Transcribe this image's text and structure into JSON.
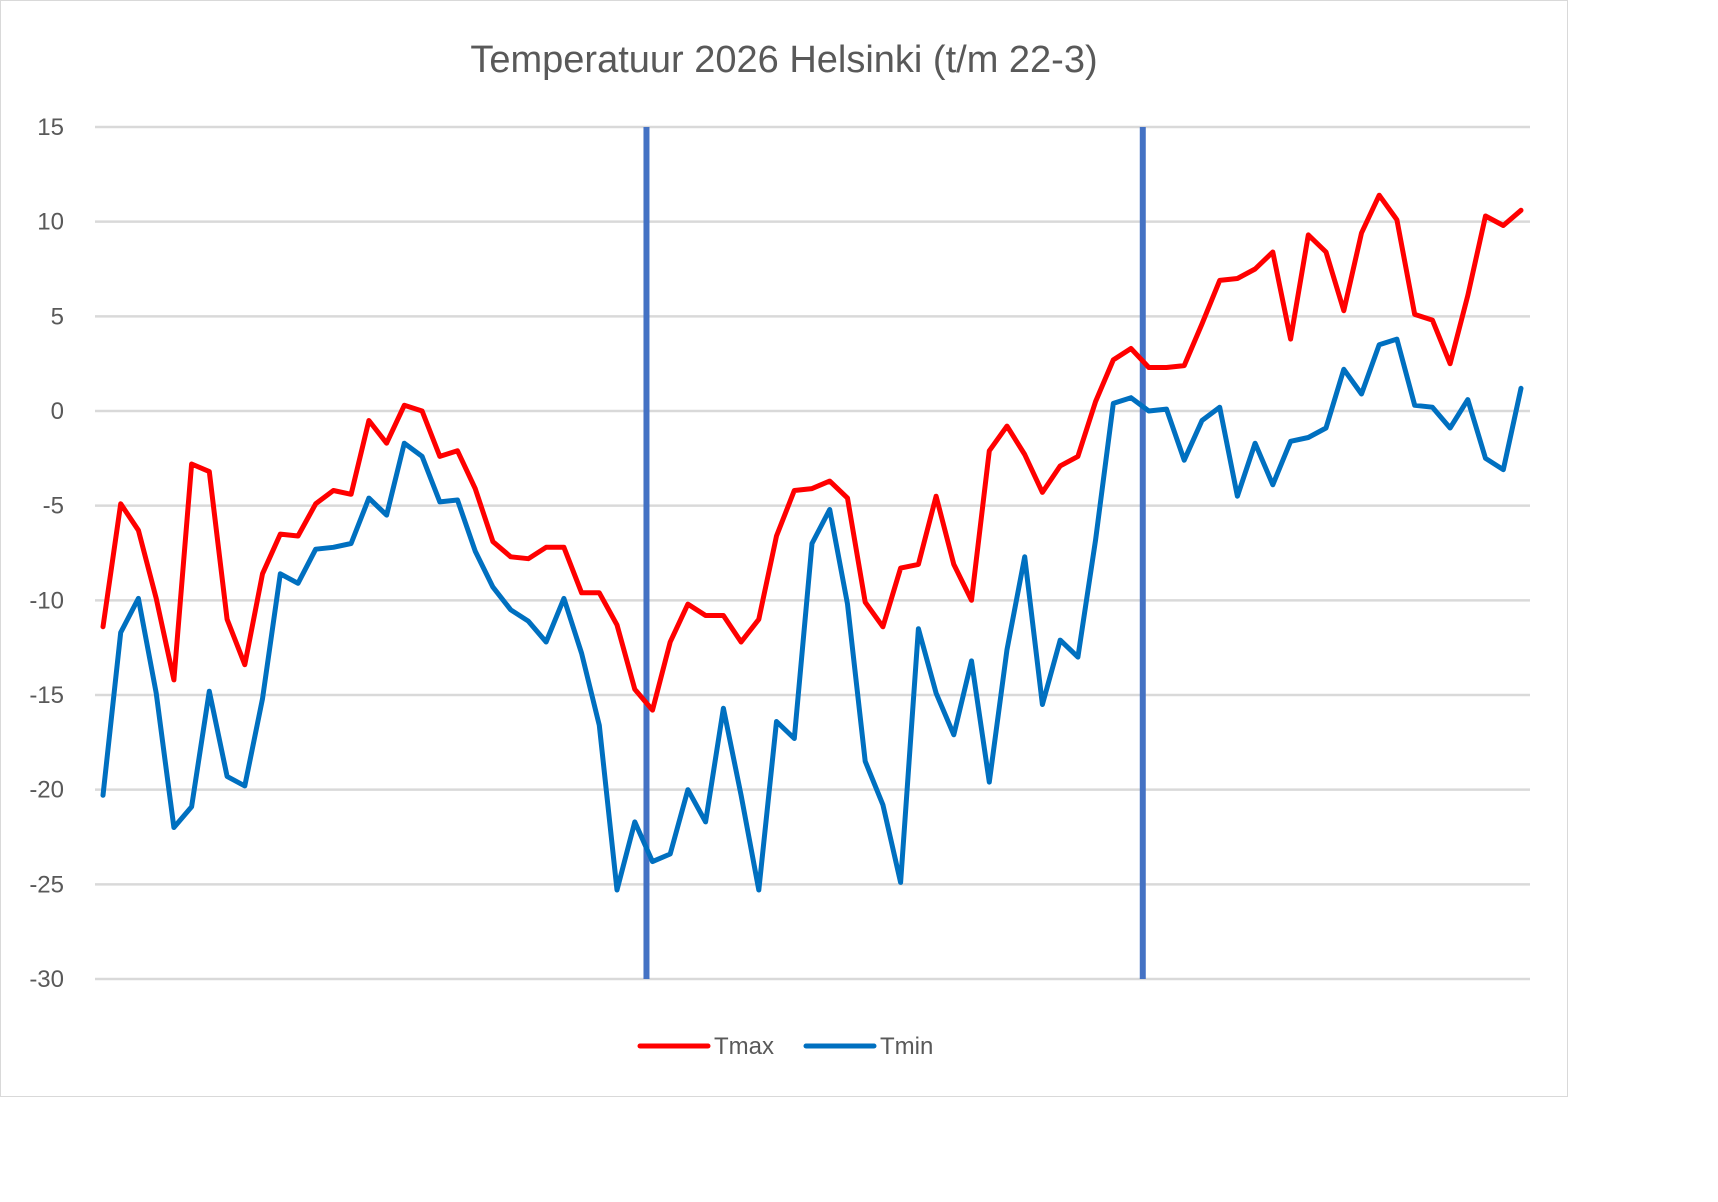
{
  "chart_data": {
    "type": "line",
    "title": "Temperatuur 2026 Helsinki (t/m 22-3)",
    "xlabel": "",
    "ylabel": "",
    "ylim": [
      -30,
      15
    ],
    "yticks": [
      15,
      10,
      5,
      0,
      -5,
      -10,
      -15,
      -20,
      -25,
      -30
    ],
    "grid": true,
    "legend_position": "bottom",
    "x": [
      1,
      2,
      3,
      4,
      5,
      6,
      7,
      8,
      9,
      10,
      11,
      12,
      13,
      14,
      15,
      16,
      17,
      18,
      19,
      20,
      21,
      22,
      23,
      24,
      25,
      26,
      27,
      28,
      29,
      30,
      31,
      32,
      33,
      34,
      35,
      36,
      37,
      38,
      39,
      40,
      41,
      42,
      43,
      44,
      45,
      46,
      47,
      48,
      49,
      50,
      51,
      52,
      53,
      54,
      55,
      56,
      57,
      58,
      59,
      60,
      61,
      62,
      63,
      64,
      65,
      66,
      67,
      68,
      69,
      70,
      71,
      72,
      73,
      74,
      75,
      76,
      77,
      78,
      79,
      80,
      81
    ],
    "vlines": [
      32,
      60
    ],
    "vline_color": "#4472c4",
    "series": [
      {
        "name": "Tmax",
        "color": "#ff0000",
        "values": [
          -11.4,
          -4.9,
          -6.3,
          -9.9,
          -14.2,
          -2.8,
          -3.2,
          -11.0,
          -13.4,
          -8.6,
          -6.5,
          -6.6,
          -4.9,
          -4.2,
          -4.4,
          -0.5,
          -1.7,
          0.3,
          0.0,
          -2.4,
          -2.1,
          -4.1,
          -6.9,
          -7.7,
          -7.8,
          -7.2,
          -7.2,
          -9.6,
          -9.6,
          -11.3,
          -14.7,
          -15.8,
          -12.2,
          -10.2,
          -10.8,
          -10.8,
          -12.2,
          -11.0,
          -6.6,
          -4.2,
          -4.1,
          -3.7,
          -4.6,
          -10.1,
          -11.4,
          -8.3,
          -8.1,
          -4.5,
          -8.1,
          -10.0,
          -2.1,
          -0.8,
          -2.3,
          -4.3,
          -2.9,
          -2.4,
          0.5,
          2.7,
          3.3,
          2.3,
          2.3,
          2.4,
          4.6,
          6.9,
          7.0,
          7.5,
          8.4,
          3.8,
          9.3,
          8.4,
          5.3,
          9.4,
          11.4,
          10.1,
          5.1,
          4.8,
          2.5,
          6.1,
          10.3,
          9.8,
          10.6
        ]
      },
      {
        "name": "Tmin",
        "color": "#0070c0",
        "values": [
          -20.3,
          -11.7,
          -9.9,
          -14.9,
          -22.0,
          -20.9,
          -14.8,
          -19.3,
          -19.8,
          -15.2,
          -8.6,
          -9.1,
          -7.3,
          -7.2,
          -7.0,
          -4.6,
          -5.5,
          -1.7,
          -2.4,
          -4.8,
          -4.7,
          -7.4,
          -9.3,
          -10.5,
          -11.1,
          -12.2,
          -9.9,
          -12.8,
          -16.6,
          -25.3,
          -21.7,
          -23.8,
          -23.4,
          -20.0,
          -21.7,
          -15.7,
          -20.3,
          -25.3,
          -16.4,
          -17.3,
          -7.0,
          -5.2,
          -10.2,
          -18.5,
          -20.8,
          -24.9,
          -11.5,
          -14.9,
          -17.1,
          -13.2,
          -19.6,
          -12.6,
          -7.7,
          -15.5,
          -12.1,
          -13.0,
          -6.8,
          0.4,
          0.7,
          0.0,
          0.1,
          -2.6,
          -0.5,
          0.2,
          -4.5,
          -1.7,
          -3.9,
          -1.6,
          -1.4,
          -0.9,
          2.2,
          0.9,
          3.5,
          3.8,
          0.3,
          0.2,
          -0.9,
          0.6,
          -2.5,
          -3.1,
          1.2
        ]
      }
    ]
  }
}
